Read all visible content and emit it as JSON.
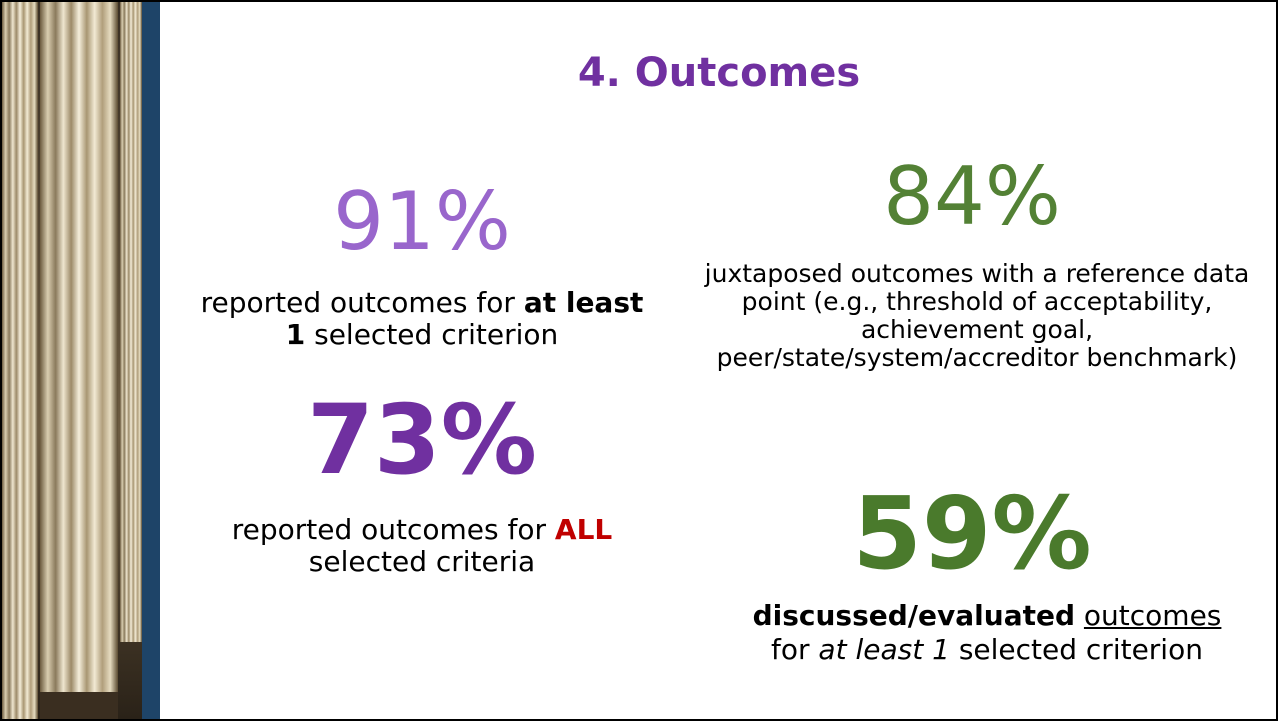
{
  "title": "4. Outcomes",
  "stats": [
    {
      "figure": "91%",
      "description": [
        "reported outcomes for",
        "at least 1",
        "selected criterion"
      ]
    },
    {
      "figure": "73%",
      "description": [
        "reported outcomes for",
        "ALL",
        "selected criteria"
      ]
    },
    {
      "figure": "84%",
      "description": [
        "juxtaposed outcomes with a reference data point (e.g., threshold of acceptability, achievement goal, peer/state/system/accreditor benchmark)"
      ]
    },
    {
      "figure": "59%",
      "description": [
        "discussed/evaluated",
        "outcomes",
        "for",
        "at least 1",
        "selected criterion"
      ]
    }
  ]
}
